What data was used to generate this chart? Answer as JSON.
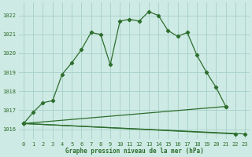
{
  "title": "Graphe pression niveau de la mer (hPa)",
  "background_color": "#ceeae4",
  "grid_color": "#aad4cc",
  "line_color": "#2d6e2d",
  "xlim": [
    -0.5,
    23.5
  ],
  "ylim": [
    1015.5,
    1022.7
  ],
  "yticks": [
    1016,
    1017,
    1018,
    1019,
    1020,
    1021,
    1022
  ],
  "xticks": [
    0,
    1,
    2,
    3,
    4,
    5,
    6,
    7,
    8,
    9,
    10,
    11,
    12,
    13,
    14,
    15,
    16,
    17,
    18,
    19,
    20,
    21,
    22,
    23
  ],
  "series": [
    {
      "x": [
        0,
        1,
        2,
        3,
        4,
        5,
        6,
        7,
        8,
        9,
        10,
        11,
        12,
        13,
        14,
        15,
        16,
        17,
        18,
        19,
        20,
        21
      ],
      "y": [
        1016.3,
        1016.9,
        1017.4,
        1017.5,
        1018.9,
        1019.5,
        1020.2,
        1021.1,
        1021.0,
        1019.4,
        1021.7,
        1021.8,
        1021.7,
        1022.2,
        1022.0,
        1021.2,
        1020.9,
        1021.1,
        1019.9,
        1019.0,
        1018.2,
        1017.2
      ]
    },
    {
      "x": [
        0,
        21
      ],
      "y": [
        1016.3,
        1017.2
      ]
    },
    {
      "x": [
        0,
        23
      ],
      "y": [
        1016.3,
        1015.75
      ]
    },
    {
      "x": [
        0,
        22
      ],
      "y": [
        1016.3,
        1015.75
      ]
    }
  ]
}
